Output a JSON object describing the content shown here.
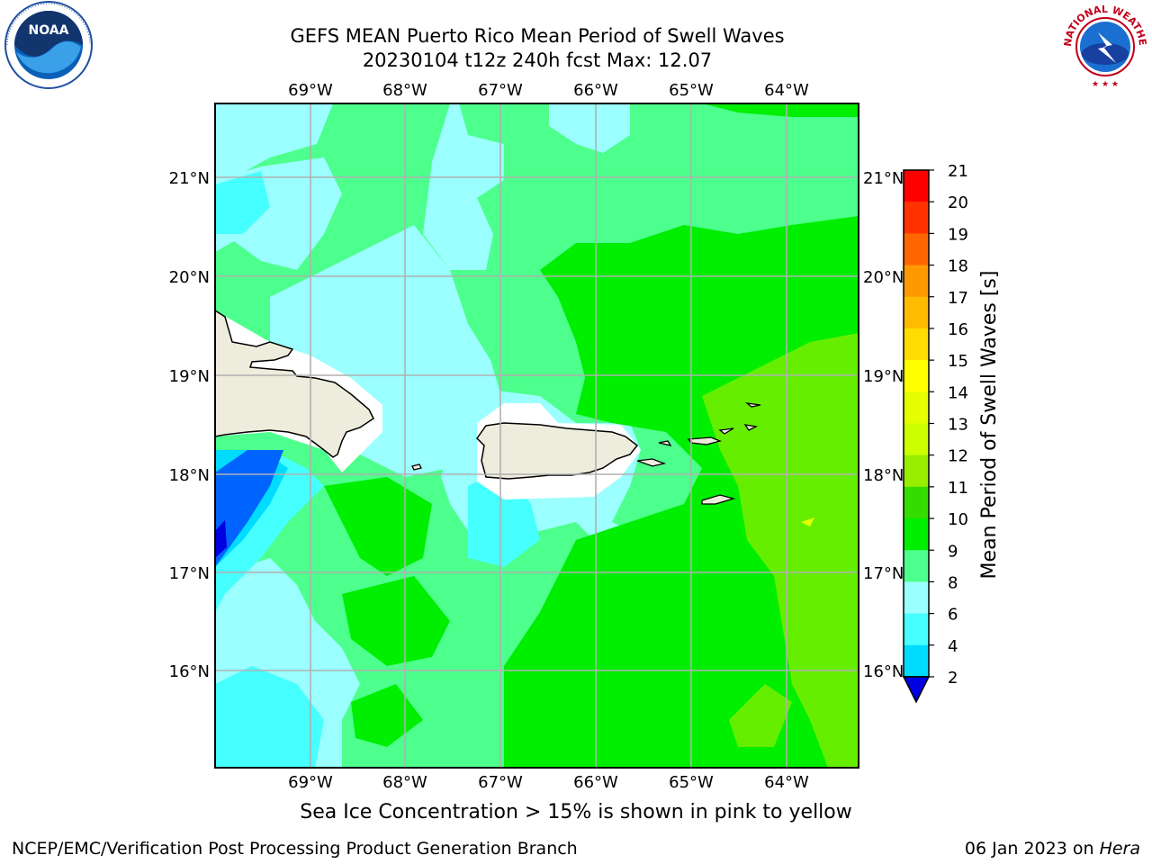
{
  "header": {
    "title_line1": "GEFS MEAN Puerto Rico Mean Period of Swell Waves",
    "title_line2": "20230104 t12z 240h fcst   Max: 12.07"
  },
  "map": {
    "lon_ticks": [
      "69°W",
      "68°W",
      "67°W",
      "66°W",
      "65°W",
      "64°W"
    ],
    "lat_ticks": [
      "21°N",
      "20°N",
      "19°N",
      "18°N",
      "17°N",
      "16°N"
    ],
    "lon_range": [
      -70.0,
      -63.3
    ],
    "lat_range": [
      15.0,
      21.7
    ],
    "grid": true,
    "land_color": "#eeecdc",
    "features": [
      "Hispaniola",
      "Puerto Rico",
      "Virgin Islands"
    ]
  },
  "colorbar": {
    "label": "Mean Period of Swell Waves [s]",
    "ticks": [
      "2",
      "4",
      "6",
      "8",
      "9",
      "10",
      "11",
      "12",
      "13",
      "14",
      "15",
      "16",
      "17",
      "18",
      "19",
      "20",
      "21"
    ],
    "colors": [
      "#0064ff",
      "#00dcff",
      "#46ffff",
      "#9bffff",
      "#4dff8c",
      "#00ee00",
      "#33dd00",
      "#99ee00",
      "#ccff00",
      "#e6ff00",
      "#ffff00",
      "#ffdd00",
      "#ffbb00",
      "#ff9900",
      "#ff6600",
      "#ff3300",
      "#ff0000"
    ],
    "under_color": "#0000e0"
  },
  "footer": {
    "note": "Sea Ice Concentration > 15% is shown in pink to yellow",
    "credit_left": "NCEP/EMC/Verification Post Processing Product Generation Branch",
    "date": "06 Jan 2023 on",
    "host": "Hera"
  },
  "logos": {
    "noaa": "NOAA",
    "nws": "NATIONAL WEATHER SERVICE"
  }
}
